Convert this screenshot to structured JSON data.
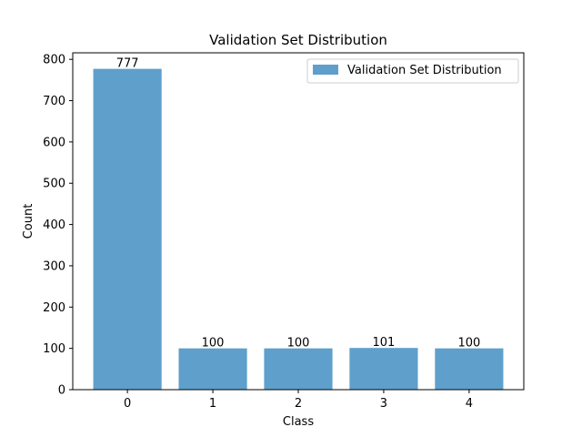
{
  "chart_data": {
    "type": "bar",
    "title": "Validation Set Distribution",
    "xlabel": "Class",
    "ylabel": "Count",
    "categories": [
      "0",
      "1",
      "2",
      "3",
      "4"
    ],
    "series": [
      {
        "name": "Validation Set Distribution",
        "values": [
          777,
          100,
          100,
          101,
          100
        ]
      }
    ],
    "data_labels": [
      "777",
      "100",
      "100",
      "101",
      "100"
    ],
    "ylim": [
      0,
      815.85
    ],
    "yticks": [
      0,
      100,
      200,
      300,
      400,
      500,
      600,
      700,
      800
    ],
    "grid": false,
    "legend_position": "top-right",
    "bar_color": "#5f9fcb"
  }
}
